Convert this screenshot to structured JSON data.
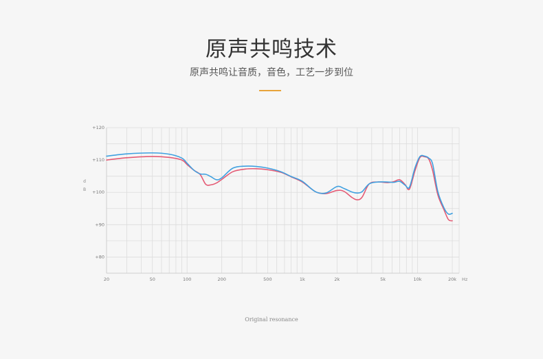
{
  "header": {
    "title": "原声共鸣技术",
    "subtitle": "原声共鸣让音质，音色，工艺一步到位"
  },
  "colors": {
    "accent": "#e8a33a",
    "series_red": "#e45a74",
    "series_blue": "#3fa0e0",
    "overlap": "#3a4fa0",
    "grid": "#dcdcdc"
  },
  "chart_data": {
    "type": "line",
    "xscale": "log",
    "xlim": [
      20,
      20000
    ],
    "ylim": [
      75,
      120
    ],
    "grid": true,
    "xlabel": "",
    "ylabel": "dB",
    "x_unit": "Hz",
    "x_ticks": [
      {
        "value": 20,
        "label": "20"
      },
      {
        "value": 50,
        "label": "50"
      },
      {
        "value": 100,
        "label": "100"
      },
      {
        "value": 200,
        "label": "200"
      },
      {
        "value": 500,
        "label": "500"
      },
      {
        "value": 1000,
        "label": "1k"
      },
      {
        "value": 2000,
        "label": "2k"
      },
      {
        "value": 5000,
        "label": "5k"
      },
      {
        "value": 10000,
        "label": "10k"
      },
      {
        "value": 20000,
        "label": "20k"
      }
    ],
    "y_ticks": [
      {
        "value": 120,
        "label": "+120"
      },
      {
        "value": 110,
        "label": "+110"
      },
      {
        "value": 100,
        "label": "+100"
      },
      {
        "value": 90,
        "label": "+90"
      },
      {
        "value": 80,
        "label": "+80"
      }
    ],
    "series": [
      {
        "color": "#e45a74",
        "x": [
          20,
          30,
          50,
          70,
          90,
          100,
          115,
          130,
          145,
          160,
          180,
          200,
          250,
          320,
          400,
          500,
          650,
          800,
          1000,
          1300,
          1600,
          2000,
          2300,
          2700,
          3000,
          3300,
          3800,
          4500,
          5500,
          6200,
          7000,
          7800,
          8500,
          9500,
          10500,
          11500,
          12500,
          13500,
          15000,
          17000,
          18500,
          20000
        ],
        "y": [
          110,
          110.7,
          111.1,
          110.8,
          110,
          108.6,
          106.8,
          105.5,
          102.5,
          102.3,
          102.9,
          104,
          106.4,
          107.2,
          107.3,
          107,
          106.2,
          104.8,
          103.2,
          100.2,
          99.6,
          100.6,
          100.3,
          98.4,
          97.7,
          98.5,
          102.6,
          103.2,
          103,
          103.3,
          103.9,
          102.4,
          101,
          106.7,
          110.8,
          111,
          110.3,
          106.8,
          99.2,
          94.5,
          91.6,
          91.2
        ]
      },
      {
        "color": "#3fa0e0",
        "x": [
          20,
          30,
          50,
          70,
          90,
          100,
          115,
          130,
          145,
          160,
          180,
          200,
          250,
          320,
          400,
          500,
          650,
          800,
          1000,
          1300,
          1600,
          2000,
          2300,
          2700,
          3000,
          3300,
          3800,
          4500,
          5500,
          6200,
          7000,
          7800,
          8500,
          9500,
          10500,
          11500,
          12500,
          13500,
          15000,
          17000,
          18500,
          20000
        ],
        "y": [
          111.2,
          111.9,
          112.2,
          111.8,
          110.6,
          109,
          106.8,
          105.7,
          105.6,
          104.9,
          103.9,
          104.5,
          107.5,
          108.1,
          108,
          107.5,
          106.4,
          104.9,
          103.4,
          100.2,
          99.8,
          101.8,
          101.2,
          100.1,
          99.8,
          100.2,
          102.6,
          103.2,
          103.2,
          103.1,
          103.4,
          102.2,
          101.6,
          107.6,
          111.1,
          111.2,
          110.6,
          108.8,
          100.2,
          95.1,
          93.3,
          93.5
        ]
      }
    ]
  },
  "caption": "Original resonance"
}
